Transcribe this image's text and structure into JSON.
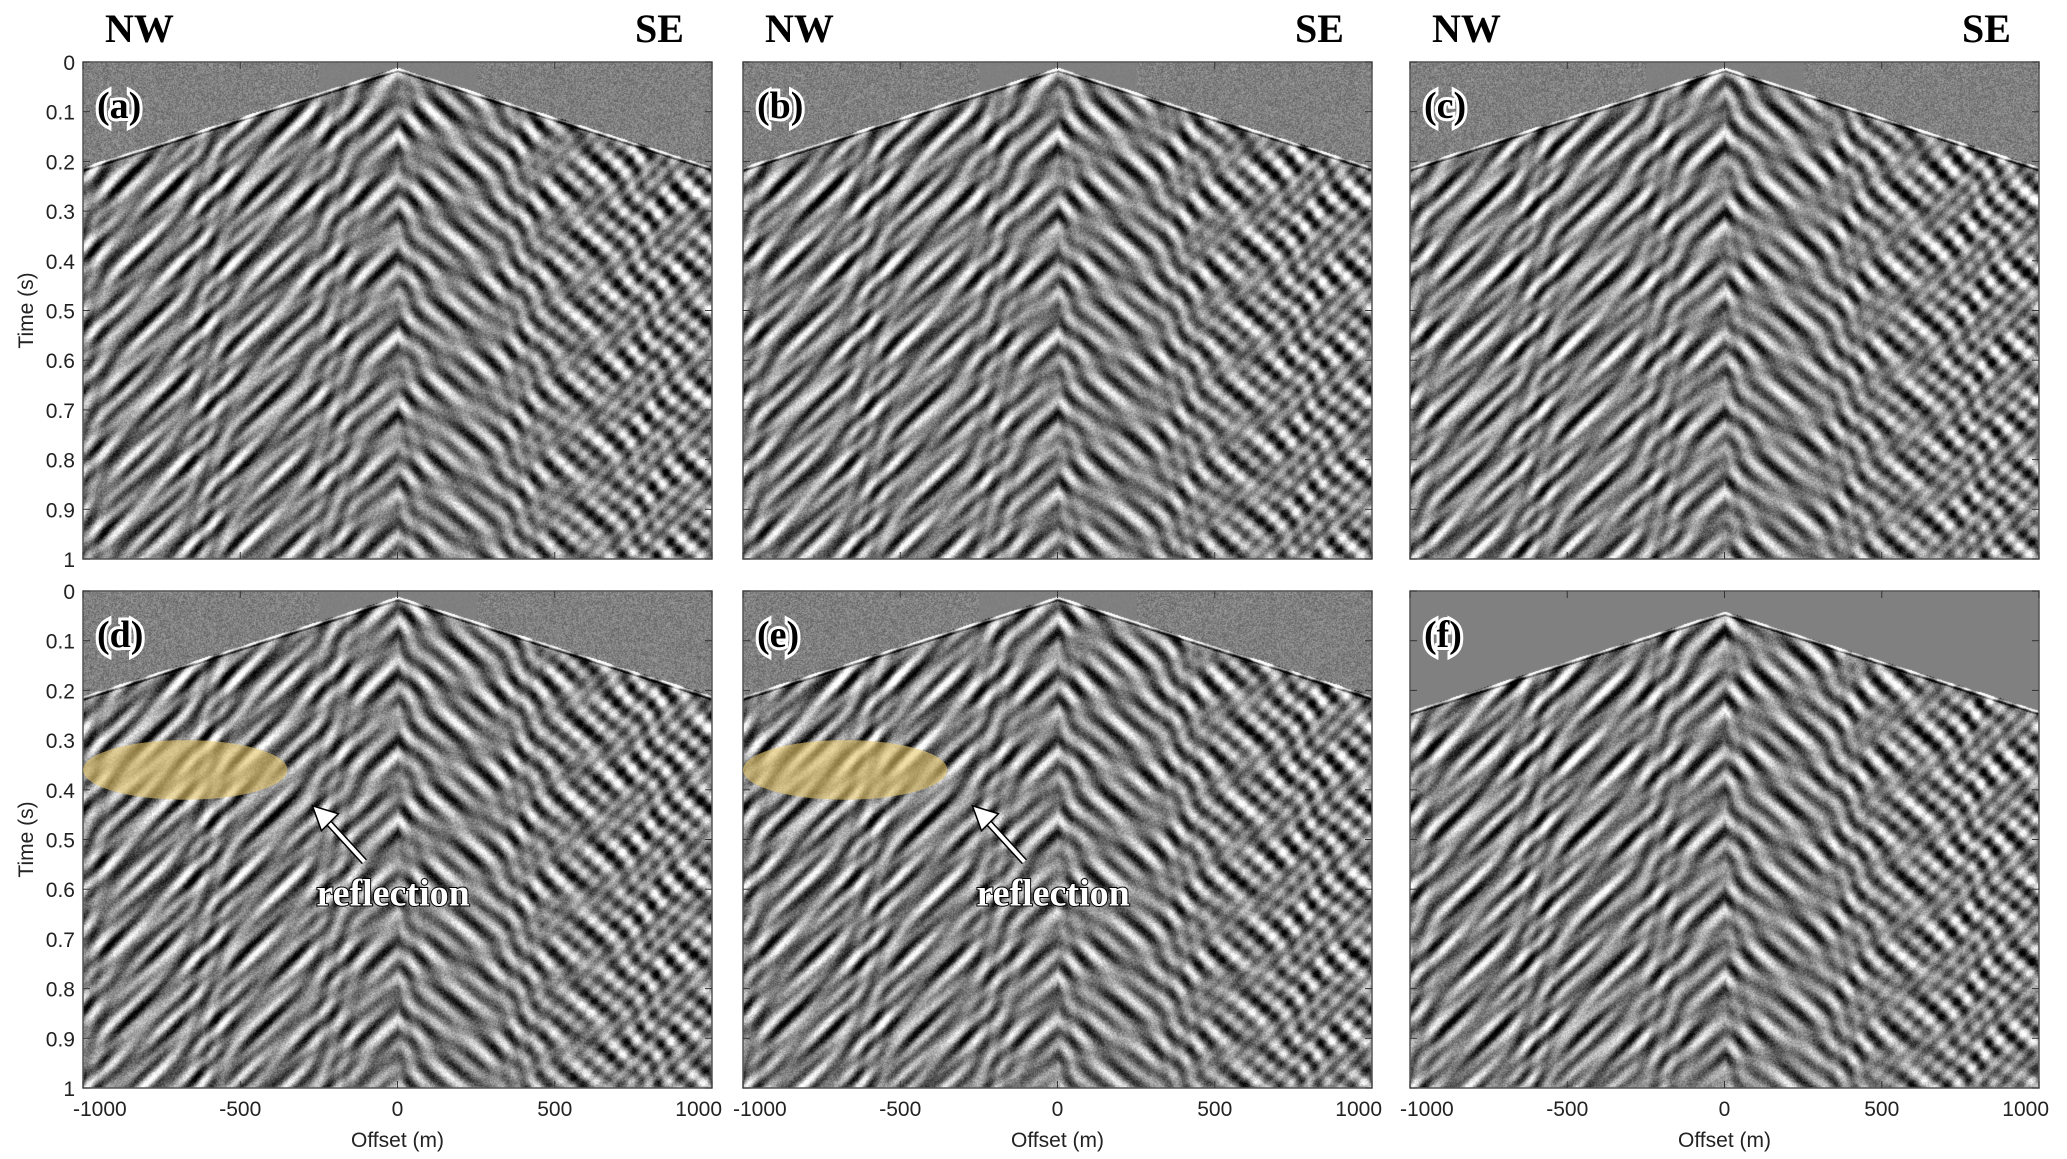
{
  "chart_data": {
    "type": "heatmap",
    "description_kind": "seismic shot gathers (grayscale wiggle-density)",
    "xlabel": "Offset (m)",
    "ylabel": "Time (s)",
    "xlim": [
      -1000,
      1000
    ],
    "ylim": [
      0,
      1
    ],
    "xticks": [
      "-1000",
      "-500",
      "0",
      "500",
      "1000"
    ],
    "yticks": [
      "0",
      "0.1",
      "0.2",
      "0.3",
      "0.4",
      "0.5",
      "0.6",
      "0.7",
      "0.8",
      "0.9",
      "1"
    ],
    "direction_left": "NW",
    "direction_right": "SE",
    "panels": [
      {
        "label": "(a)",
        "muted": false
      },
      {
        "label": "(b)",
        "muted": false
      },
      {
        "label": "(c)",
        "muted": false
      },
      {
        "label": "(d)",
        "muted": false,
        "annotation": "reflection",
        "highlight_offset": [
          -1000,
          -350
        ],
        "highlight_time": [
          0.3,
          0.42
        ]
      },
      {
        "label": "(e)",
        "muted": false,
        "annotation": "reflection",
        "highlight_offset": [
          -1000,
          -350
        ],
        "highlight_time": [
          0.3,
          0.42
        ]
      },
      {
        "label": "(f)",
        "muted": true
      }
    ],
    "colors": {
      "highlight": "#e8c86a",
      "background_gray": "#808080"
    }
  }
}
